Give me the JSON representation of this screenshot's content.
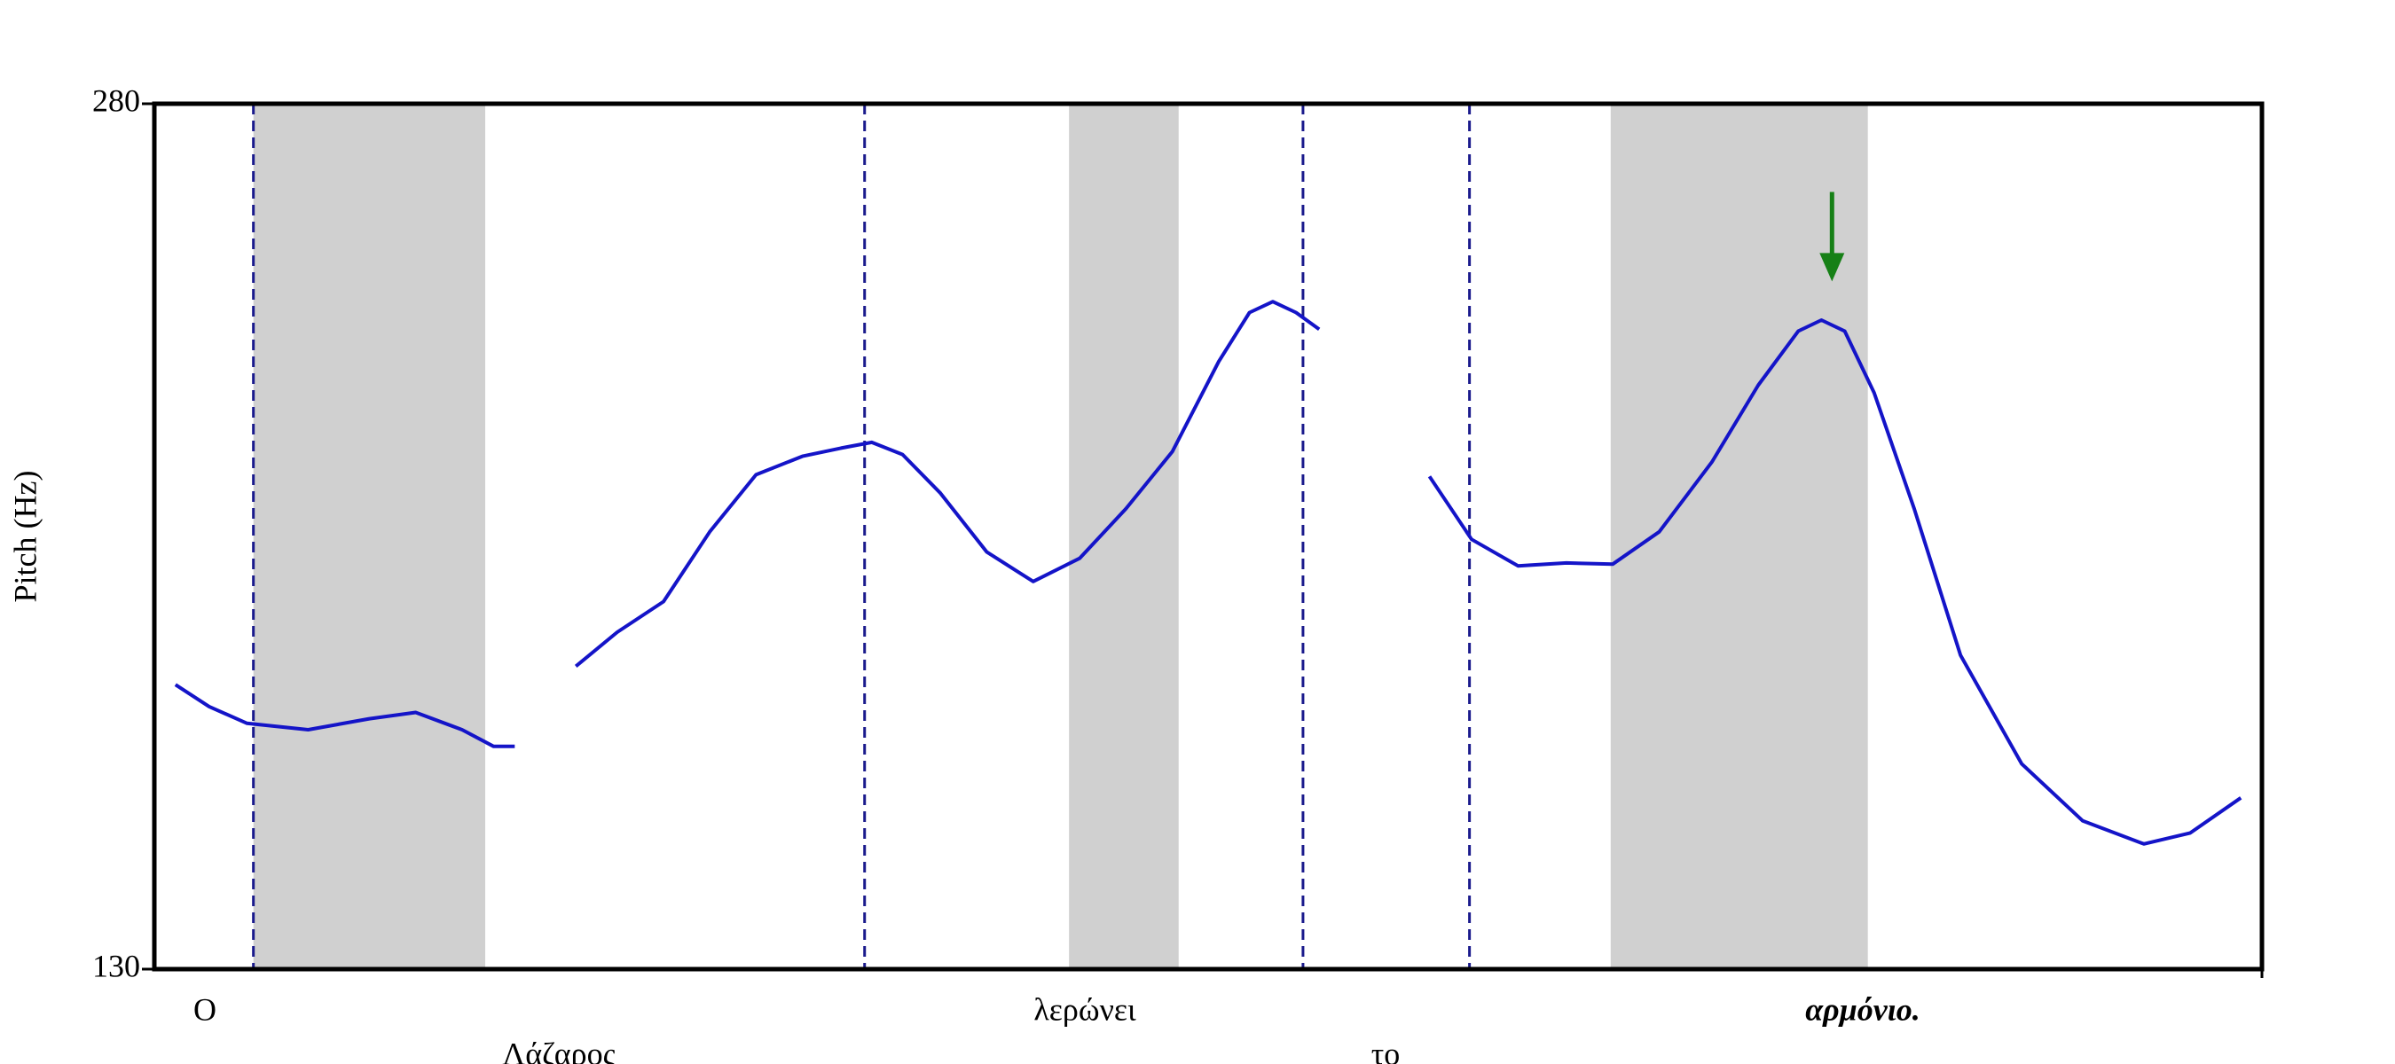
{
  "chart_data": {
    "type": "line",
    "ylabel": "Pitch (Hz)",
    "ylim": [
      130,
      280
    ],
    "yticks": [
      130,
      280
    ],
    "xlim": [
      0,
      100
    ],
    "series": [
      {
        "color": "#1414c8",
        "x": [
          1.0,
          2.6,
          4.4,
          7.3,
          10.2,
          12.4,
          14.6,
          16.1,
          17.1,
          null,
          20.0,
          21.96,
          24.16,
          26.35,
          28.55,
          30.75,
          32.58,
          34.04,
          35.5,
          37.3,
          39.5,
          41.7,
          43.9,
          46.1,
          48.3,
          50.5,
          51.96,
          53.07,
          54.17,
          55.27,
          null,
          60.5,
          62.5,
          64.7,
          67.0,
          69.2,
          71.4,
          73.9,
          76.1,
          78.0,
          79.1,
          80.2,
          81.6,
          83.5,
          85.7,
          88.6,
          91.5,
          94.4,
          96.6,
          99.0
        ],
        "values": [
          179.3,
          175.5,
          172.6,
          171.5,
          173.4,
          174.5,
          171.5,
          168.6,
          168.6,
          null,
          182.5,
          188.4,
          193.7,
          205.8,
          215.7,
          218.9,
          220.3,
          221.3,
          219.2,
          212.5,
          202.3,
          197.2,
          201.2,
          209.8,
          219.7,
          235.3,
          243.8,
          245.7,
          243.8,
          240.9,
          null,
          215.4,
          204.5,
          199.9,
          200.4,
          200.2,
          205.8,
          217.9,
          231.2,
          240.6,
          242.5,
          240.6,
          229.9,
          209.8,
          184.4,
          165.6,
          155.7,
          151.7,
          153.6,
          159.7
        ]
      }
    ],
    "shaded_regions": [
      [
        4.7,
        15.7
      ],
      [
        43.4,
        48.6
      ],
      [
        69.1,
        81.3
      ]
    ],
    "shade_color": "#d0d0d0",
    "boundaries": [
      4.7,
      33.7,
      54.5,
      62.4
    ],
    "boundary_color": "#1a1a8c",
    "arrow": {
      "x": 79.6,
      "y_from": 264.7,
      "y_to": 249.2,
      "color": "#168016"
    },
    "words": [
      "Ο",
      "Λάζαρος",
      "λερώνει",
      "το",
      "αρμόνιο."
    ]
  }
}
